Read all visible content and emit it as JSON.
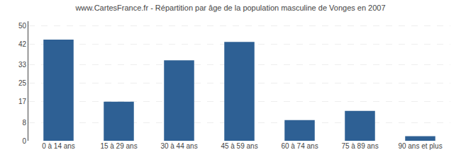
{
  "chart_data": {
    "type": "bar",
    "title": "www.CartesFrance.fr - Répartition par âge de la population masculine de Vonges en 2007",
    "categories": [
      "0 à 14 ans",
      "15 à 29 ans",
      "30 à 44 ans",
      "45 à 59 ans",
      "60 à 74 ans",
      "75 à 89 ans",
      "90 ans et plus"
    ],
    "values": [
      44,
      17,
      35,
      43,
      9,
      13,
      2
    ],
    "color": "#2e6094",
    "ylim": [
      0,
      52
    ],
    "yticks": [
      0,
      8,
      17,
      25,
      33,
      42,
      50
    ],
    "grid": true
  }
}
